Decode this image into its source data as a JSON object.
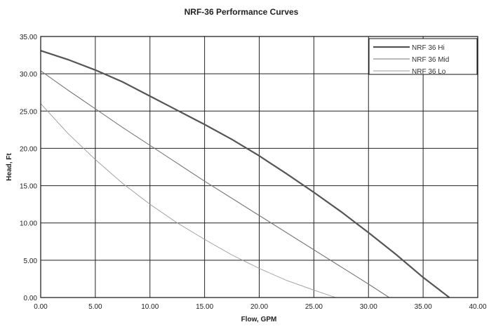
{
  "chart_data": {
    "type": "line",
    "title": "NRF-36 Performance Curves",
    "xlabel": "Flow, GPM",
    "ylabel": "Head, Ft",
    "xlim": [
      0,
      40
    ],
    "ylim": [
      0,
      35
    ],
    "x_ticks": [
      "0.00",
      "5.00",
      "10.00",
      "15.00",
      "20.00",
      "25.00",
      "30.00",
      "35.00",
      "40.00"
    ],
    "y_ticks": [
      "0.00",
      "5.00",
      "10.00",
      "15.00",
      "20.00",
      "25.00",
      "30.00",
      "35.00"
    ],
    "grid": true,
    "legend_position": "top-right",
    "series": [
      {
        "name": "NRF 36 Hi",
        "color": "#555555",
        "x": [
          0,
          2.5,
          5,
          7.5,
          10,
          12.5,
          15,
          17.5,
          20,
          22.5,
          25,
          27.5,
          30,
          32.5,
          35,
          37.4
        ],
        "y": [
          33.1,
          31.9,
          30.5,
          28.9,
          27.0,
          25.1,
          23.2,
          21.2,
          19.0,
          16.6,
          14.1,
          11.5,
          8.7,
          5.8,
          2.7,
          0
        ]
      },
      {
        "name": "NRF 36 Mid",
        "color": "#777777",
        "x": [
          0,
          2.5,
          5,
          7.5,
          10,
          12.5,
          15,
          17.5,
          20,
          22.5,
          25,
          27.5,
          30,
          31.9
        ],
        "y": [
          30.4,
          27.8,
          25.3,
          22.8,
          20.4,
          18.0,
          15.6,
          13.3,
          11.0,
          8.7,
          6.4,
          4.1,
          1.8,
          0
        ]
      },
      {
        "name": "NRF 36 Lo",
        "color": "#9a9a9a",
        "x": [
          0,
          2.5,
          5,
          7.5,
          10,
          12.5,
          15,
          17.5,
          20,
          22.5,
          25,
          27.0
        ],
        "y": [
          26.0,
          22.0,
          18.5,
          15.3,
          12.5,
          10.0,
          7.8,
          5.7,
          3.9,
          2.3,
          1.0,
          0
        ]
      }
    ]
  }
}
